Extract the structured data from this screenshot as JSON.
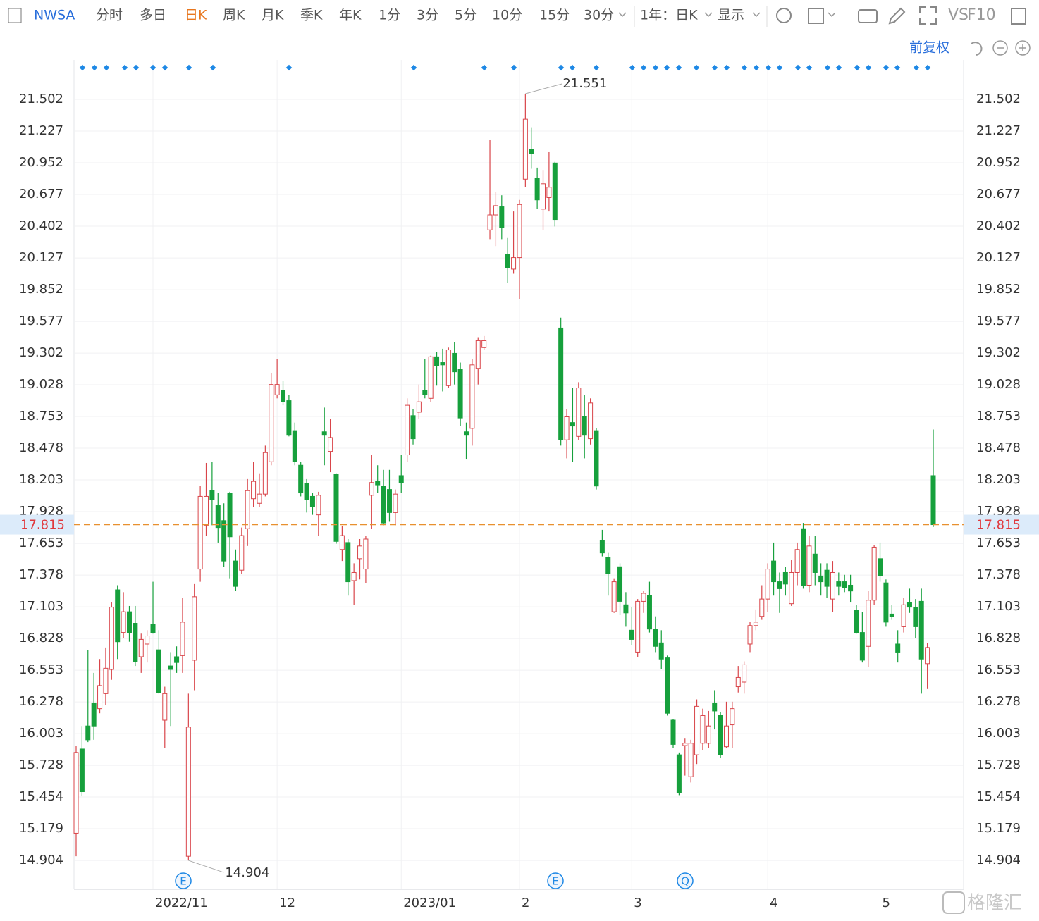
{
  "toolbar": {
    "symbol": "NWSA",
    "tabs": [
      "分时",
      "多日",
      "日K",
      "周K",
      "月K",
      "季K",
      "年K",
      "1分",
      "3分",
      "5分",
      "10分",
      "15分",
      "30分"
    ],
    "active_tab": 2,
    "range": "1年：日K",
    "display": "显示",
    "vs": "VS",
    "f10": "F10",
    "adjust": "前复权"
  },
  "watermark": "格隆汇",
  "chart_data": {
    "type": "candlestick",
    "categories": [
      null,
      null,
      null,
      null,
      null,
      null,
      null,
      null,
      null,
      null,
      null,
      null,
      null,
      "2022/11",
      null,
      null,
      null,
      null,
      null,
      null,
      null,
      null,
      null,
      null,
      null,
      null,
      null,
      null,
      null,
      null,
      null,
      null,
      null,
      null,
      "12",
      null,
      null,
      null,
      null,
      null,
      null,
      null,
      null,
      null,
      null,
      null,
      null,
      null,
      null,
      null,
      null,
      null,
      null,
      null,
      null,
      "2023/01",
      null,
      null,
      null,
      null,
      null,
      null,
      null,
      null,
      null,
      null,
      null,
      null,
      null,
      null,
      null,
      null,
      null,
      null,
      null,
      "2",
      null,
      null,
      null,
      null,
      null,
      null,
      null,
      null,
      null,
      null,
      null,
      null,
      null,
      null,
      null,
      null,
      null,
      null,
      "3",
      null,
      null,
      null,
      null,
      null,
      null,
      null,
      null,
      null,
      null,
      null,
      null,
      null,
      null,
      null,
      null,
      null,
      null,
      null,
      null,
      null,
      null,
      "4",
      null,
      null,
      null,
      null,
      null,
      null,
      null,
      null,
      null,
      null,
      null,
      null,
      null,
      null,
      null,
      null,
      null,
      null,
      "5",
      null,
      null,
      null,
      null,
      null,
      null,
      null,
      null,
      null
    ],
    "candles": [
      [
        15.14,
        15.9,
        14.94,
        15.84
      ],
      [
        15.87,
        16.07,
        15.46,
        15.5
      ],
      [
        16.07,
        16.73,
        15.93,
        15.95
      ],
      [
        16.27,
        16.53,
        15.95,
        16.07
      ],
      [
        16.22,
        16.65,
        16.18,
        16.42
      ],
      [
        16.35,
        16.75,
        16.25,
        16.57
      ],
      [
        16.56,
        17.14,
        16.47,
        17.1
      ],
      [
        17.25,
        17.29,
        16.65,
        16.8
      ],
      [
        16.88,
        17.23,
        16.83,
        17.06
      ],
      [
        17.06,
        17.11,
        16.8,
        16.88
      ],
      [
        16.96,
        17.11,
        16.59,
        16.63
      ],
      [
        16.67,
        16.87,
        16.53,
        16.82
      ],
      [
        16.78,
        16.9,
        16.62,
        16.85
      ],
      [
        16.95,
        17.32,
        16.87,
        16.88
      ],
      [
        16.73,
        16.9,
        16.35,
        16.36
      ],
      [
        16.12,
        16.41,
        15.88,
        16.35
      ],
      [
        16.59,
        16.71,
        16.07,
        16.56
      ],
      [
        16.67,
        16.76,
        16.53,
        16.62
      ],
      [
        16.68,
        17.18,
        16.53,
        16.97
      ],
      [
        14.94,
        16.35,
        14.904,
        16.06
      ],
      [
        16.64,
        17.3,
        16.38,
        17.19
      ],
      [
        17.43,
        18.15,
        17.32,
        18.06
      ],
      [
        17.81,
        18.35,
        17.72,
        18.06
      ],
      [
        18.11,
        18.36,
        17.81,
        18.03
      ],
      [
        17.98,
        18.09,
        17.66,
        17.79
      ],
      [
        17.85,
        18.0,
        17.45,
        17.5
      ],
      [
        18.09,
        18.1,
        17.35,
        17.71
      ],
      [
        17.5,
        17.6,
        17.24,
        17.28
      ],
      [
        17.42,
        17.79,
        17.39,
        17.72
      ],
      [
        17.78,
        18.21,
        17.63,
        18.11
      ],
      [
        18.04,
        18.36,
        17.97,
        18.19
      ],
      [
        18.0,
        18.26,
        17.97,
        18.08
      ],
      [
        18.08,
        18.5,
        18.06,
        18.44
      ],
      [
        18.36,
        19.13,
        18.33,
        19.03
      ],
      [
        18.94,
        19.25,
        18.91,
        19.03
      ],
      [
        18.98,
        19.06,
        18.85,
        18.88
      ],
      [
        18.89,
        18.94,
        18.58,
        18.59
      ],
      [
        18.63,
        18.7,
        18.33,
        18.36
      ],
      [
        18.33,
        18.36,
        18.06,
        18.09
      ],
      [
        18.17,
        18.21,
        17.92,
        18.03
      ],
      [
        18.06,
        18.09,
        17.9,
        17.97
      ],
      [
        17.9,
        18.1,
        17.72,
        18.07
      ],
      [
        18.62,
        18.83,
        18.33,
        18.59
      ],
      [
        18.45,
        18.73,
        18.27,
        18.57
      ],
      [
        18.25,
        18.26,
        17.65,
        17.67
      ],
      [
        17.6,
        17.8,
        17.5,
        17.72
      ],
      [
        17.66,
        17.69,
        17.2,
        17.32
      ],
      [
        17.33,
        17.48,
        17.12,
        17.4
      ],
      [
        17.52,
        17.69,
        17.34,
        17.63
      ],
      [
        17.43,
        17.72,
        17.31,
        17.69
      ],
      [
        18.07,
        18.42,
        17.78,
        18.18
      ],
      [
        18.19,
        18.33,
        18.09,
        18.16
      ],
      [
        18.15,
        18.29,
        17.81,
        17.83
      ],
      [
        18.12,
        18.29,
        17.84,
        17.92
      ],
      [
        17.92,
        18.12,
        17.81,
        18.08
      ],
      [
        18.24,
        18.42,
        18.09,
        18.18
      ],
      [
        18.42,
        18.91,
        18.36,
        18.85
      ],
      [
        18.76,
        18.82,
        18.51,
        18.56
      ],
      [
        18.79,
        19.03,
        18.73,
        18.88
      ],
      [
        18.98,
        19.25,
        18.91,
        18.94
      ],
      [
        18.91,
        19.28,
        18.88,
        19.27
      ],
      [
        19.27,
        19.31,
        19.02,
        19.19
      ],
      [
        19.22,
        19.34,
        18.97,
        19.2
      ],
      [
        19.02,
        19.35,
        19.0,
        19.33
      ],
      [
        19.3,
        19.4,
        19.03,
        19.14
      ],
      [
        19.16,
        19.22,
        18.67,
        18.74
      ],
      [
        18.62,
        18.7,
        18.38,
        18.59
      ],
      [
        18.65,
        19.25,
        18.5,
        19.2
      ],
      [
        19.17,
        19.44,
        19.03,
        19.41
      ],
      [
        19.35,
        19.45,
        19.33,
        19.41
      ],
      [
        20.37,
        21.15,
        20.29,
        20.5
      ],
      [
        20.5,
        20.7,
        20.23,
        20.58
      ],
      [
        20.57,
        20.67,
        20.29,
        20.39
      ],
      [
        20.16,
        20.3,
        19.91,
        20.04
      ],
      [
        20.03,
        20.53,
        19.99,
        20.13
      ],
      [
        20.13,
        20.63,
        19.77,
        20.59
      ],
      [
        20.81,
        21.551,
        20.74,
        21.33
      ],
      [
        21.07,
        21.26,
        20.9,
        21.03
      ],
      [
        20.82,
        20.91,
        20.55,
        20.63
      ],
      [
        20.55,
        20.89,
        20.37,
        20.77
      ],
      [
        20.65,
        21.05,
        20.53,
        20.74
      ],
      [
        20.95,
        20.96,
        20.4,
        20.46
      ],
      [
        19.52,
        19.61,
        18.5,
        18.55
      ],
      [
        18.55,
        18.82,
        18.39,
        18.75
      ],
      [
        18.7,
        19.0,
        18.36,
        18.67
      ],
      [
        18.58,
        19.05,
        18.55,
        19.0
      ],
      [
        18.75,
        18.94,
        18.39,
        18.59
      ],
      [
        18.56,
        18.91,
        18.51,
        18.87
      ],
      [
        18.63,
        18.65,
        18.12,
        18.15
      ],
      [
        17.68,
        17.77,
        17.54,
        17.57
      ],
      [
        17.53,
        17.57,
        17.2,
        17.39
      ],
      [
        17.06,
        17.35,
        17.05,
        17.32
      ],
      [
        17.45,
        17.48,
        17.03,
        17.15
      ],
      [
        17.12,
        17.23,
        16.93,
        17.05
      ],
      [
        16.9,
        17.1,
        16.77,
        16.82
      ],
      [
        16.71,
        17.17,
        16.67,
        17.15
      ],
      [
        17.15,
        17.24,
        17.05,
        17.22
      ],
      [
        17.2,
        17.32,
        16.88,
        16.91
      ],
      [
        16.91,
        17.02,
        16.71,
        16.76
      ],
      [
        16.79,
        16.9,
        16.56,
        16.65
      ],
      [
        16.66,
        16.68,
        16.16,
        16.18
      ],
      [
        16.12,
        16.13,
        15.88,
        15.91
      ],
      [
        15.82,
        15.84,
        15.47,
        15.49
      ],
      [
        15.9,
        15.96,
        15.64,
        15.92
      ],
      [
        15.63,
        15.95,
        15.58,
        15.92
      ],
      [
        15.82,
        16.3,
        15.74,
        16.24
      ],
      [
        15.92,
        16.22,
        15.86,
        16.16
      ],
      [
        15.92,
        16.2,
        15.88,
        16.07
      ],
      [
        16.27,
        16.38,
        16.04,
        16.2
      ],
      [
        16.16,
        16.19,
        15.79,
        15.82
      ],
      [
        15.89,
        16.28,
        15.88,
        16.07
      ],
      [
        16.08,
        16.28,
        15.88,
        16.22
      ],
      [
        16.41,
        16.59,
        16.36,
        16.49
      ],
      [
        16.45,
        16.63,
        16.35,
        16.6
      ],
      [
        16.78,
        16.97,
        16.71,
        16.94
      ],
      [
        16.94,
        17.08,
        16.9,
        16.97
      ],
      [
        17.02,
        17.29,
        16.99,
        17.17
      ],
      [
        17.17,
        17.48,
        17.06,
        17.43
      ],
      [
        17.5,
        17.66,
        17.2,
        17.32
      ],
      [
        17.32,
        17.4,
        17.05,
        17.26
      ],
      [
        17.4,
        17.45,
        17.2,
        17.3
      ],
      [
        17.13,
        17.51,
        17.11,
        17.4
      ],
      [
        17.4,
        17.66,
        17.29,
        17.6
      ],
      [
        17.78,
        17.83,
        17.26,
        17.29
      ],
      [
        17.29,
        17.72,
        17.23,
        17.63
      ],
      [
        17.56,
        17.72,
        17.29,
        17.4
      ],
      [
        17.37,
        17.48,
        17.2,
        17.32
      ],
      [
        17.42,
        17.48,
        17.18,
        17.28
      ],
      [
        17.17,
        17.5,
        17.06,
        17.4
      ],
      [
        17.32,
        17.4,
        17.2,
        17.28
      ],
      [
        17.32,
        17.38,
        17.23,
        17.27
      ],
      [
        17.29,
        17.38,
        17.14,
        17.24
      ],
      [
        17.07,
        17.12,
        16.87,
        16.88
      ],
      [
        16.88,
        17.06,
        16.62,
        16.64
      ],
      [
        16.76,
        17.24,
        16.58,
        17.16
      ],
      [
        17.16,
        17.64,
        17.12,
        17.62
      ],
      [
        17.52,
        17.66,
        17.32,
        17.37
      ],
      [
        17.31,
        17.34,
        16.93,
        16.97
      ],
      [
        17.04,
        17.12,
        16.99,
        17.02
      ],
      [
        16.78,
        16.9,
        16.62,
        16.71
      ],
      [
        16.93,
        17.18,
        16.88,
        17.12
      ],
      [
        17.14,
        17.26,
        17.05,
        17.1
      ],
      [
        17.1,
        17.17,
        16.83,
        16.93
      ],
      [
        17.15,
        17.26,
        16.35,
        16.65
      ],
      [
        16.61,
        16.79,
        16.39,
        16.75
      ],
      [
        18.24,
        18.64,
        17.795,
        17.815
      ]
    ],
    "ylim": [
      14.654,
      21.844
    ],
    "yticks": [
      14.904,
      15.179,
      15.454,
      15.728,
      16.003,
      16.278,
      16.553,
      16.828,
      17.103,
      17.378,
      17.653,
      17.928,
      18.203,
      18.478,
      18.753,
      19.028,
      19.302,
      19.577,
      19.852,
      20.127,
      20.402,
      20.677,
      20.952,
      21.227,
      21.502
    ],
    "grid": true,
    "up_color": "#d9454a",
    "down_color": "#16a03c",
    "last_price_color": "#e8902f",
    "event_markers": [
      "E",
      "E",
      "Q"
    ]
  }
}
